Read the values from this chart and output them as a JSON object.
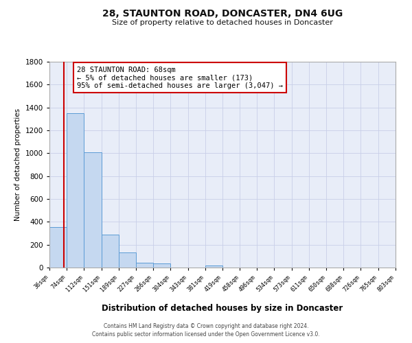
{
  "title": "28, STAUNTON ROAD, DONCASTER, DN4 6UG",
  "subtitle": "Size of property relative to detached houses in Doncaster",
  "xlabel": "Distribution of detached houses by size in Doncaster",
  "ylabel": "Number of detached properties",
  "bar_left_edges": [
    36,
    74,
    112,
    151,
    189,
    227,
    266,
    304,
    343,
    381,
    419,
    458,
    496,
    534,
    573,
    611,
    650,
    688,
    726,
    765
  ],
  "bar_widths": [
    38,
    38,
    39,
    38,
    38,
    39,
    38,
    39,
    38,
    38,
    39,
    38,
    38,
    39,
    38,
    38,
    39,
    38,
    39,
    38
  ],
  "bar_heights": [
    355,
    1350,
    1010,
    290,
    130,
    45,
    35,
    0,
    0,
    20,
    0,
    0,
    0,
    0,
    0,
    0,
    0,
    0,
    0,
    0
  ],
  "bar_color": "#c5d8f0",
  "bar_edge_color": "#5b9bd5",
  "tick_labels": [
    "36sqm",
    "74sqm",
    "112sqm",
    "151sqm",
    "189sqm",
    "227sqm",
    "266sqm",
    "304sqm",
    "343sqm",
    "381sqm",
    "419sqm",
    "458sqm",
    "496sqm",
    "534sqm",
    "573sqm",
    "611sqm",
    "650sqm",
    "688sqm",
    "726sqm",
    "765sqm",
    "803sqm"
  ],
  "ylim": [
    0,
    1800
  ],
  "yticks": [
    0,
    200,
    400,
    600,
    800,
    1000,
    1200,
    1400,
    1600,
    1800
  ],
  "property_line_x": 68,
  "property_line_color": "#cc0000",
  "annotation_title": "28 STAUNTON ROAD: 68sqm",
  "annotation_line1": "← 5% of detached houses are smaller (173)",
  "annotation_line2": "95% of semi-detached houses are larger (3,047) →",
  "annotation_box_color": "#ffffff",
  "annotation_box_edge": "#cc0000",
  "grid_color": "#c8cfe8",
  "background_color": "#e8edf8",
  "fig_background": "#ffffff",
  "footer_line1": "Contains HM Land Registry data © Crown copyright and database right 2024.",
  "footer_line2": "Contains public sector information licensed under the Open Government Licence v3.0."
}
